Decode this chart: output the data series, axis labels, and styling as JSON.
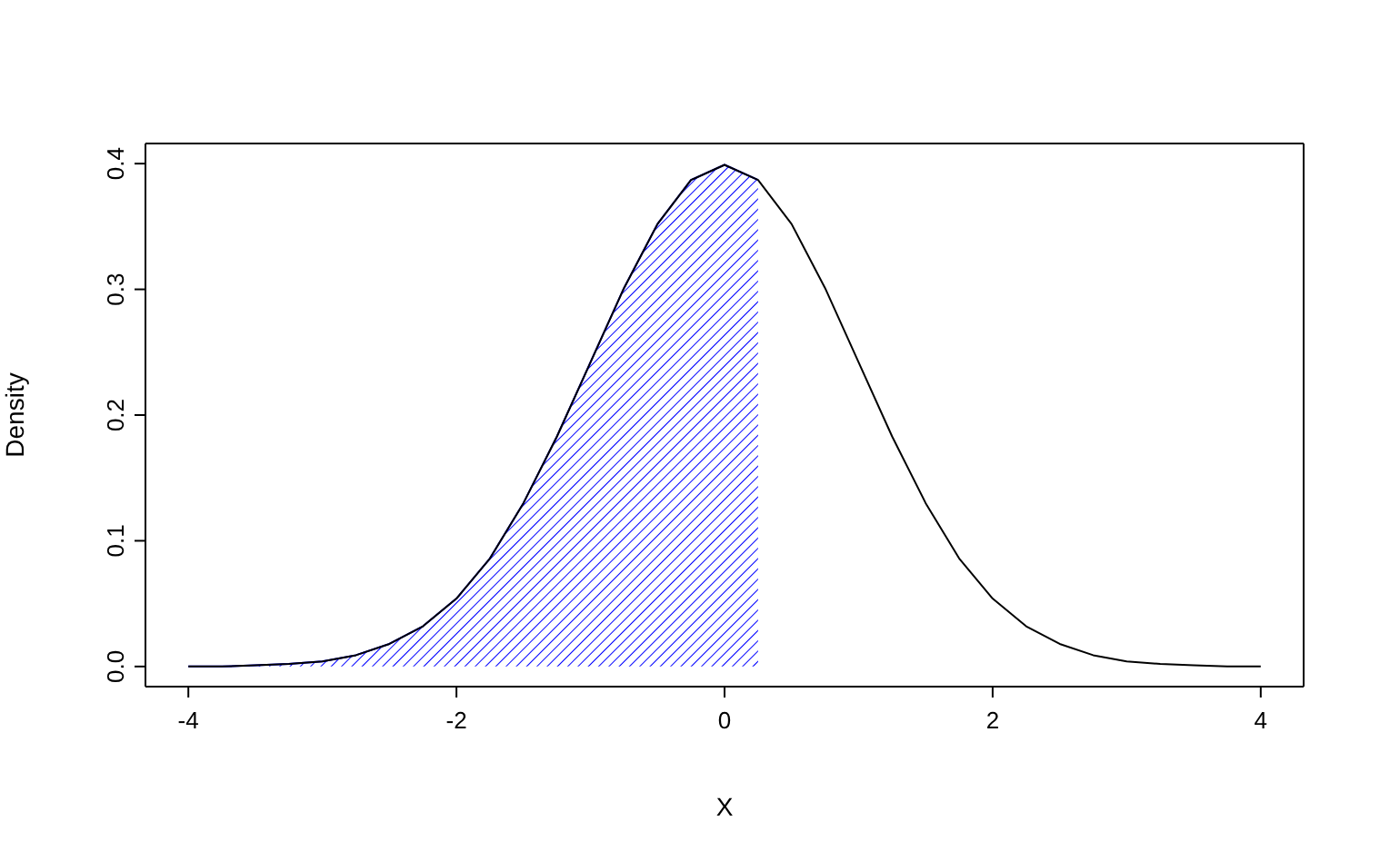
{
  "chart_data": {
    "type": "line",
    "xlabel": "X",
    "ylabel": "Density",
    "xlim": [
      -4.32,
      4.32
    ],
    "ylim": [
      -0.016,
      0.416
    ],
    "xticks": [
      -4,
      -2,
      0,
      2,
      4
    ],
    "yticks": [
      {
        "value": 0,
        "label": "0.0"
      },
      {
        "value": 0.1,
        "label": "0.1"
      },
      {
        "value": 0.2,
        "label": "0.2"
      },
      {
        "value": 0.3,
        "label": "0.3"
      },
      {
        "value": 0.4,
        "label": "0.4"
      }
    ],
    "grid": false,
    "legend": false,
    "series": [
      {
        "type": "area",
        "color": "#0000ff",
        "x": [
          -4,
          -3.75,
          -3.5,
          -3.25,
          -3,
          -2.75,
          -2.5,
          -2.25,
          -2,
          -1.75,
          -1.5,
          -1.25,
          -1,
          -0.75,
          -0.5,
          -0.25,
          0,
          0.25
        ],
        "values": [
          0.0,
          0.0,
          0.001,
          0.002,
          0.004,
          0.009,
          0.018,
          0.032,
          0.054,
          0.086,
          0.13,
          0.183,
          0.242,
          0.301,
          0.352,
          0.387,
          0.399,
          0.387
        ]
      },
      {
        "color": "#000000",
        "x": [
          -4,
          -3.75,
          -3.5,
          -3.25,
          -3,
          -2.75,
          -2.5,
          -2.25,
          -2,
          -1.75,
          -1.5,
          -1.25,
          -1,
          -0.75,
          -0.5,
          -0.25,
          0,
          0.25,
          0.5,
          0.75,
          1,
          1.25,
          1.5,
          1.75,
          2,
          2.25,
          2.5,
          2.75,
          3,
          3.25,
          3.5,
          3.75,
          4
        ],
        "values": [
          0.0,
          0.0,
          0.001,
          0.002,
          0.004,
          0.009,
          0.018,
          0.032,
          0.054,
          0.086,
          0.13,
          0.183,
          0.242,
          0.301,
          0.352,
          0.387,
          0.399,
          0.387,
          0.352,
          0.301,
          0.242,
          0.183,
          0.13,
          0.086,
          0.054,
          0.032,
          0.018,
          0.009,
          0.004,
          0.002,
          0.001,
          0.0,
          0.0
        ]
      }
    ]
  }
}
